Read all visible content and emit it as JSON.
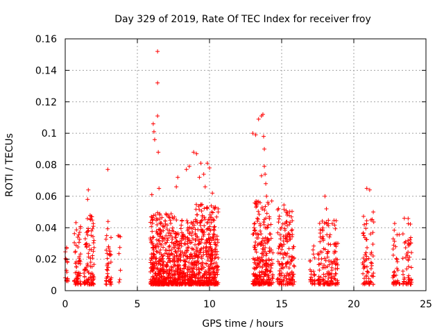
{
  "chart_data": {
    "type": "scatter",
    "title": "Day 329 of 2019, Rate Of TEC Index for receiver froy",
    "xlabel": "GPS time / hours",
    "ylabel": "ROTI / TECUs",
    "xlim": [
      0,
      25
    ],
    "ylim": [
      0,
      0.16
    ],
    "xticks": [
      0,
      5,
      10,
      15,
      20,
      25
    ],
    "xtick_labels": [
      "0",
      "5",
      "10",
      "15",
      "20",
      "25"
    ],
    "yticks": [
      0,
      0.02,
      0.04,
      0.06,
      0.08,
      0.1,
      0.12,
      0.14,
      0.16
    ],
    "ytick_labels": [
      "0",
      "0.02",
      "0.04",
      "0.06",
      "0.08",
      "0.1",
      "0.12",
      "0.14",
      "0.16"
    ],
    "grid": true,
    "marker": "+",
    "color": "#ff0000",
    "series": [
      {
        "name": "ROTI",
        "clusters": [
          {
            "t0": 0.0,
            "t1": 0.2,
            "lo": 0.006,
            "hi": 0.028,
            "n": 14
          },
          {
            "t0": 0.6,
            "t1": 1.1,
            "lo": 0.004,
            "hi": 0.044,
            "n": 60
          },
          {
            "t0": 1.3,
            "t1": 2.0,
            "lo": 0.004,
            "hi": 0.048,
            "n": 90
          },
          {
            "t0": 2.8,
            "t1": 3.2,
            "lo": 0.004,
            "hi": 0.048,
            "n": 40
          },
          {
            "t0": 3.6,
            "t1": 3.9,
            "lo": 0.005,
            "hi": 0.042,
            "n": 8
          },
          {
            "t0": 5.9,
            "t1": 7.6,
            "lo": 0.004,
            "hi": 0.05,
            "n": 420
          },
          {
            "t0": 7.6,
            "t1": 8.9,
            "lo": 0.004,
            "hi": 0.045,
            "n": 280
          },
          {
            "t0": 8.9,
            "t1": 10.6,
            "lo": 0.004,
            "hi": 0.055,
            "n": 380
          },
          {
            "t0": 13.0,
            "t1": 14.4,
            "lo": 0.004,
            "hi": 0.057,
            "n": 260
          },
          {
            "t0": 14.7,
            "t1": 15.9,
            "lo": 0.004,
            "hi": 0.055,
            "n": 160
          },
          {
            "t0": 16.9,
            "t1": 17.3,
            "lo": 0.004,
            "hi": 0.032,
            "n": 25
          },
          {
            "t0": 17.5,
            "t1": 18.9,
            "lo": 0.004,
            "hi": 0.045,
            "n": 150
          },
          {
            "t0": 20.6,
            "t1": 21.4,
            "lo": 0.004,
            "hi": 0.05,
            "n": 70
          },
          {
            "t0": 22.7,
            "t1": 23.2,
            "lo": 0.004,
            "hi": 0.043,
            "n": 40
          },
          {
            "t0": 23.4,
            "t1": 24.0,
            "lo": 0.004,
            "hi": 0.047,
            "n": 55
          }
        ],
        "outliers": [
          [
            6.4,
            0.152
          ],
          [
            6.4,
            0.132
          ],
          [
            6.4,
            0.111
          ],
          [
            6.1,
            0.106
          ],
          [
            6.15,
            0.101
          ],
          [
            6.2,
            0.096
          ],
          [
            6.45,
            0.088
          ],
          [
            6.5,
            0.065
          ],
          [
            6.0,
            0.061
          ],
          [
            7.7,
            0.066
          ],
          [
            7.8,
            0.072
          ],
          [
            8.4,
            0.077
          ],
          [
            8.6,
            0.079
          ],
          [
            8.9,
            0.088
          ],
          [
            9.1,
            0.087
          ],
          [
            9.3,
            0.072
          ],
          [
            9.4,
            0.081
          ],
          [
            9.6,
            0.074
          ],
          [
            9.7,
            0.066
          ],
          [
            9.85,
            0.081
          ],
          [
            10.0,
            0.078
          ],
          [
            10.2,
            0.062
          ],
          [
            13.0,
            0.1
          ],
          [
            13.2,
            0.099
          ],
          [
            13.4,
            0.109
          ],
          [
            13.6,
            0.111
          ],
          [
            13.7,
            0.112
          ],
          [
            13.75,
            0.098
          ],
          [
            13.8,
            0.09
          ],
          [
            13.8,
            0.079
          ],
          [
            13.85,
            0.074
          ],
          [
            13.9,
            0.068
          ],
          [
            13.6,
            0.073
          ],
          [
            13.95,
            0.06
          ],
          [
            1.6,
            0.064
          ],
          [
            1.55,
            0.058
          ],
          [
            1.85,
            0.047
          ],
          [
            2.95,
            0.077
          ],
          [
            18.0,
            0.06
          ],
          [
            18.1,
            0.052
          ],
          [
            20.9,
            0.065
          ],
          [
            21.1,
            0.064
          ],
          [
            21.35,
            0.05
          ],
          [
            23.5,
            0.046
          ],
          [
            0.1,
            0.027
          ],
          [
            0.15,
            0.018
          ]
        ]
      }
    ]
  }
}
